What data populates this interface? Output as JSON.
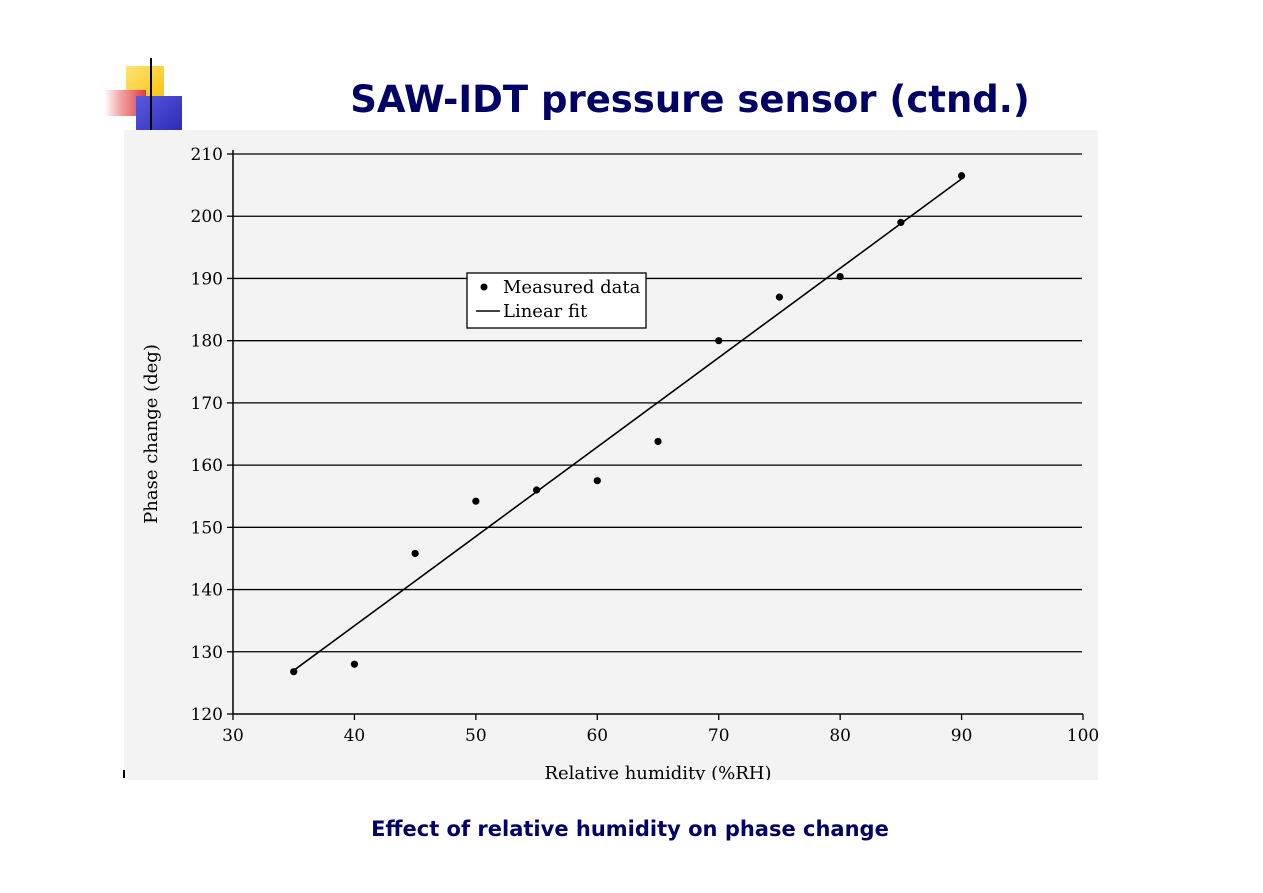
{
  "slide": {
    "title": "SAW-IDT pressure sensor (ctnd.)",
    "caption": "Effect of relative humidity on phase change",
    "title_color": "#000066"
  },
  "logo": {
    "icon": "slide-logo-icon",
    "colors": [
      "#f8c200",
      "#e23b3b",
      "#2b2bb8"
    ]
  },
  "chart_data": {
    "type": "scatter",
    "title": "",
    "xlabel": "Relative humidity (%RH)",
    "ylabel": "Phase change (deg)",
    "xlim": [
      30,
      100
    ],
    "ylim": [
      120,
      210
    ],
    "xticks": [
      30,
      40,
      50,
      60,
      70,
      80,
      90,
      100
    ],
    "yticks": [
      120,
      130,
      140,
      150,
      160,
      170,
      180,
      190,
      200,
      210
    ],
    "grid": "horizontal",
    "legend": {
      "placement": "upper-left-center",
      "entries": [
        "Measured data",
        "Linear fit"
      ]
    },
    "series": [
      {
        "name": "Measured data",
        "kind": "points",
        "x": [
          35,
          40,
          45,
          50,
          55,
          60,
          65,
          70,
          75,
          80,
          85,
          90
        ],
        "y": [
          126.8,
          128,
          145.8,
          154.2,
          156,
          157.5,
          163.8,
          180,
          187,
          190.3,
          199,
          206.5
        ]
      },
      {
        "name": "Linear fit",
        "kind": "line",
        "x": [
          35,
          90
        ],
        "y": [
          127,
          206
        ]
      }
    ]
  }
}
